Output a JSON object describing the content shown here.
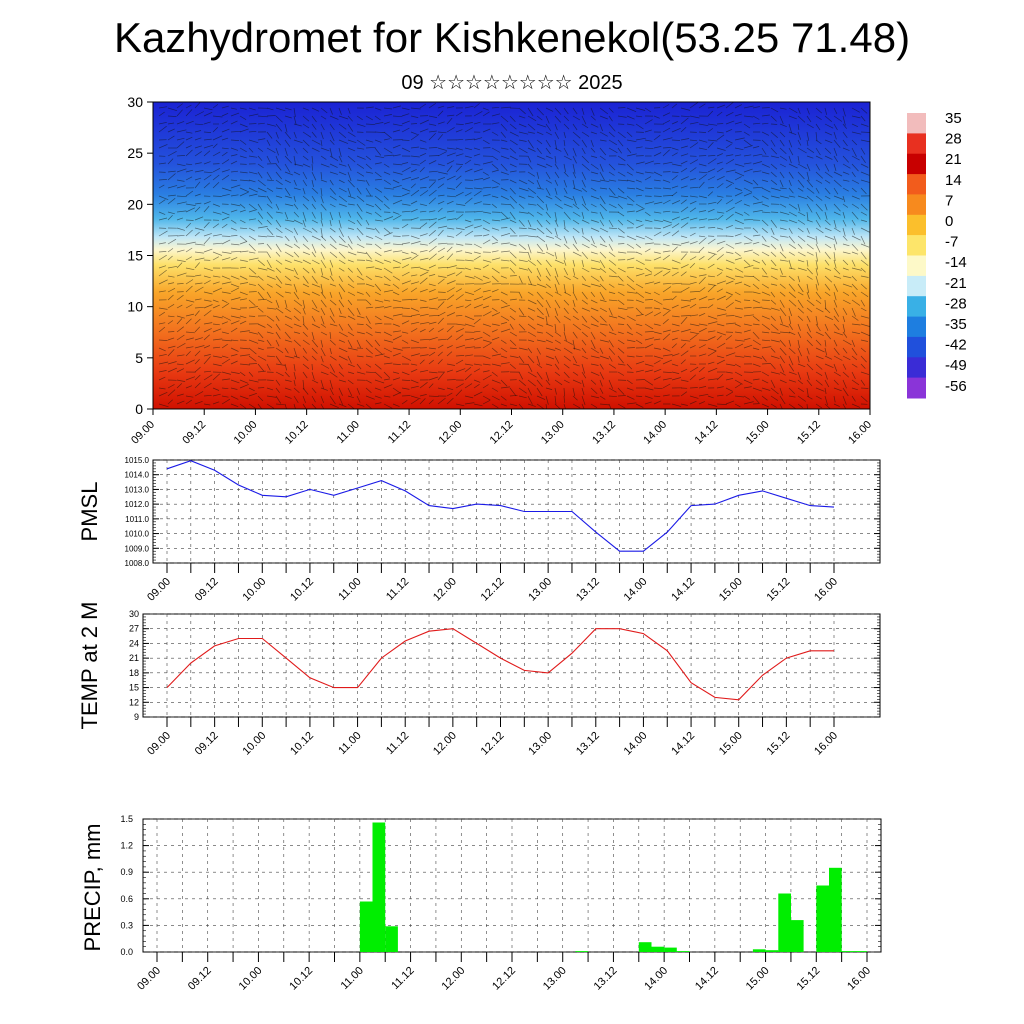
{
  "title": "Kazhydromet for Kishkenekol(53.25 71.48)",
  "subtitle": "09 ☆☆☆☆☆☆☆☆ 2025",
  "time_labels": [
    "09.00",
    "09.12",
    "10.00",
    "10.12",
    "11.00",
    "11.12",
    "12.00",
    "12.12",
    "13.00",
    "13.12",
    "14.00",
    "14.12",
    "15.00",
    "15.12",
    "16.00"
  ],
  "colorbar": {
    "labels": [
      "35",
      "28",
      "21",
      "14",
      "7",
      "0",
      "-7",
      "-14",
      "-21",
      "-28",
      "-35",
      "-42",
      "-49",
      "-56"
    ],
    "colors": [
      "#f2bcbc",
      "#e83020",
      "#c80000",
      "#f25c1c",
      "#f78a1e",
      "#fbbf2c",
      "#fde56a",
      "#fdf9c8",
      "#c8ecf8",
      "#39b0e6",
      "#1e7ee0",
      "#2050dc",
      "#3a2cd6",
      "#8a34d8"
    ]
  },
  "chart_data": [
    {
      "type": "heatmap",
      "description_free": true,
      "x_range": [
        "09.00",
        "16.00"
      ],
      "ylim": [
        0,
        30
      ],
      "y_ticks": [
        0,
        5,
        10,
        15,
        20,
        25,
        30
      ],
      "colorbar_range": [
        -56,
        35
      ],
      "bands": [
        {
          "y": [
            0,
            5
          ],
          "value_approx": 21
        },
        {
          "y": [
            5,
            10
          ],
          "value_approx": 14
        },
        {
          "y": [
            10,
            15
          ],
          "value_approx": 0
        },
        {
          "y": [
            15,
            17
          ],
          "value_approx": -14
        },
        {
          "y": [
            17,
            22
          ],
          "value_approx": -35
        },
        {
          "y": [
            22,
            30
          ],
          "value_approx": -49
        }
      ]
    },
    {
      "type": "line",
      "ylabel": "PMSL",
      "ylim": [
        1008.0,
        1015.0
      ],
      "y_ticks": [
        "1008.0",
        "1009.0",
        "1010.0",
        "1011.0",
        "1012.0",
        "1013.0",
        "1014.0",
        "1015.0"
      ],
      "color": "#1a1ae6",
      "x_hours": [
        0,
        6,
        12,
        18,
        24,
        30,
        36,
        42,
        48,
        54,
        60,
        66,
        72,
        78,
        84,
        90,
        96,
        102,
        108,
        114,
        120,
        126,
        132,
        138,
        144,
        150,
        156,
        162,
        168
      ],
      "values": [
        1014.4,
        1014.95,
        1014.3,
        1013.3,
        1012.6,
        1012.5,
        1013.0,
        1012.6,
        1013.1,
        1013.6,
        1012.9,
        1011.9,
        1011.7,
        1012.0,
        1011.9,
        1011.5,
        1011.5,
        1011.5,
        1010.1,
        1008.8,
        1008.8,
        1010.1,
        1011.9,
        1012.0,
        1012.6,
        1012.9,
        1012.4,
        1011.9,
        1011.8
      ]
    },
    {
      "type": "line",
      "ylabel": "TEMP at 2 M",
      "ylim": [
        9,
        30
      ],
      "y_ticks": [
        "9",
        "12",
        "15",
        "18",
        "21",
        "24",
        "27",
        "30"
      ],
      "color": "#e01a1a",
      "x_hours": [
        0,
        6,
        12,
        18,
        24,
        30,
        36,
        42,
        48,
        54,
        60,
        66,
        72,
        78,
        84,
        90,
        96,
        102,
        108,
        114,
        120,
        126,
        132,
        138,
        144,
        150,
        156,
        162,
        168
      ],
      "values": [
        15,
        20,
        23.5,
        25,
        25,
        21,
        17,
        15,
        15,
        21,
        24.5,
        26.5,
        27,
        24,
        21,
        18.5,
        18,
        22,
        27,
        27,
        26,
        22.5,
        16,
        13,
        12.5,
        17.5,
        21,
        22.5,
        22.5
      ]
    },
    {
      "type": "bar",
      "ylabel": "PRECIP, mm",
      "ylim": [
        0,
        1.5
      ],
      "y_ticks": [
        "0.0",
        "0.3",
        "0.6",
        "0.9",
        "1.2",
        "1.5"
      ],
      "color": "#00ee00",
      "bar_hours": [
        48,
        51,
        54,
        99,
        114,
        117,
        120,
        123,
        141,
        144,
        147,
        150,
        156,
        159,
        162,
        165
      ],
      "values": [
        0.57,
        1.46,
        0.29,
        0.01,
        0.11,
        0.06,
        0.05,
        0.01,
        0.03,
        0.02,
        0.66,
        0.36,
        0.75,
        0.95,
        0.01,
        0.01
      ]
    }
  ]
}
